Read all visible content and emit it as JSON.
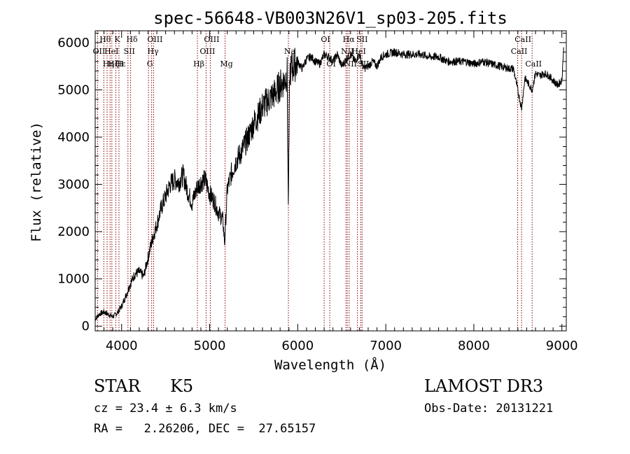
{
  "chart_data": {
    "type": "line",
    "title": "spec-56648-VB003N26V1_sp03-205.fits",
    "xlabel": "Wavelength (Å)",
    "ylabel": "Flux (relative)",
    "xlim": [
      3700,
      9050
    ],
    "ylim": [
      -100,
      6250
    ],
    "xticks": [
      4000,
      5000,
      6000,
      7000,
      8000,
      9000
    ],
    "yticks": [
      0,
      1000,
      2000,
      3000,
      4000,
      5000,
      6000
    ],
    "grid": false,
    "line_color": "#000000",
    "marker_color": "#8b0000",
    "series": [
      {
        "x": [
          3700,
          3750,
          3800,
          3850,
          3900,
          3950,
          4000,
          4050,
          4100,
          4150,
          4200,
          4250,
          4300,
          4350,
          4400,
          4450,
          4500,
          4550,
          4600,
          4650,
          4700,
          4750,
          4800,
          4850,
          4900,
          4950,
          5000,
          5050,
          5100,
          5150,
          5170,
          5200,
          5250,
          5300,
          5350,
          5400,
          5450,
          5500,
          5550,
          5600,
          5650,
          5700,
          5750,
          5800,
          5850,
          5880,
          5893,
          5910,
          5950,
          6000,
          6050,
          6100,
          6150,
          6200,
          6250,
          6300,
          6350,
          6400,
          6450,
          6500,
          6550,
          6600,
          6650,
          6700,
          6750,
          6800,
          6850,
          6900,
          6950,
          7000,
          7100,
          7200,
          7300,
          7400,
          7500,
          7600,
          7700,
          7800,
          7900,
          8000,
          8100,
          8200,
          8300,
          8400,
          8450,
          8498,
          8542,
          8580,
          8662,
          8700,
          8750,
          8800,
          8850,
          8900,
          8950,
          9000,
          9020
        ],
        "y": [
          150,
          260,
          300,
          250,
          200,
          280,
          420,
          650,
          900,
          1100,
          1150,
          1050,
          1450,
          1850,
          2150,
          2500,
          2750,
          3000,
          3100,
          3050,
          3200,
          2850,
          2600,
          2900,
          3050,
          3100,
          2800,
          2650,
          2400,
          2250,
          1750,
          2900,
          3250,
          3500,
          3650,
          3850,
          4050,
          4300,
          4450,
          4650,
          4750,
          4850,
          4950,
          5100,
          5200,
          5350,
          2500,
          5400,
          5500,
          5600,
          5450,
          5650,
          5700,
          5600,
          5550,
          5750,
          5700,
          5600,
          5750,
          5500,
          5650,
          5750,
          5600,
          5750,
          5450,
          5500,
          5600,
          5500,
          5700,
          5750,
          5800,
          5750,
          5750,
          5750,
          5700,
          5700,
          5600,
          5600,
          5600,
          5550,
          5600,
          5550,
          5500,
          5450,
          5450,
          5000,
          4600,
          5250,
          5000,
          5350,
          5300,
          5350,
          5300,
          5200,
          5100,
          5200,
          5900
        ]
      }
    ],
    "lines": [
      {
        "x": 3727,
        "labels": [
          "OII"
        ],
        "rows": [
          1
        ]
      },
      {
        "x": 3798,
        "labels": [
          "Hθ"
        ],
        "rows": [
          0
        ]
      },
      {
        "x": 3835,
        "labels": [
          "Hη"
        ],
        "rows": [
          2
        ]
      },
      {
        "x": 3869,
        "labels": [
          "HeI"
        ],
        "rows": [
          1
        ]
      },
      {
        "x": 3889,
        "labels": [
          "Hζ"
        ],
        "rows": [
          2
        ]
      },
      {
        "x": 3934,
        "labels": [
          "K"
        ],
        "rows": [
          0
        ]
      },
      {
        "x": 3970,
        "labels": [
          "H",
          "Hε"
        ],
        "rows": [
          2,
          2
        ]
      },
      {
        "x": 4072,
        "labels": [
          "SII"
        ],
        "rows": [
          1
        ]
      },
      {
        "x": 4102,
        "labels": [
          "Hδ"
        ],
        "rows": [
          0
        ]
      },
      {
        "x": 4305,
        "labels": [
          "G"
        ],
        "rows": [
          2
        ]
      },
      {
        "x": 4341,
        "labels": [
          "Hγ"
        ],
        "rows": [
          1
        ]
      },
      {
        "x": 4363,
        "labels": [
          "OIII"
        ],
        "rows": [
          0
        ]
      },
      {
        "x": 4861,
        "labels": [
          "Hβ"
        ],
        "rows": [
          2
        ]
      },
      {
        "x": 4959,
        "labels": [
          "OIII"
        ],
        "rows": [
          1
        ]
      },
      {
        "x": 5007,
        "labels": [
          "OIII"
        ],
        "rows": [
          0
        ]
      },
      {
        "x": 5175,
        "labels": [
          "Mg"
        ],
        "rows": [
          2
        ]
      },
      {
        "x": 5894,
        "labels": [
          "Na"
        ],
        "rows": [
          1
        ]
      },
      {
        "x": 6300,
        "labels": [
          "OI"
        ],
        "rows": [
          0
        ]
      },
      {
        "x": 6364,
        "labels": [
          "OI"
        ],
        "rows": [
          2
        ]
      },
      {
        "x": 6548,
        "labels": [
          "NII"
        ],
        "rows": [
          1
        ]
      },
      {
        "x": 6563,
        "labels": [
          "Hα"
        ],
        "rows": [
          0
        ]
      },
      {
        "x": 6584,
        "labels": [
          "NII"
        ],
        "rows": [
          2
        ]
      },
      {
        "x": 6678,
        "labels": [
          "HeI"
        ],
        "rows": [
          1
        ]
      },
      {
        "x": 6716,
        "labels": [
          "SII"
        ],
        "rows": [
          0
        ]
      },
      {
        "x": 6731,
        "labels": [
          "SII"
        ],
        "rows": [
          2
        ]
      },
      {
        "x": 8498,
        "labels": [
          "CaII"
        ],
        "rows": [
          1
        ]
      },
      {
        "x": 8542,
        "labels": [
          "CaII"
        ],
        "rows": [
          0
        ]
      },
      {
        "x": 8662,
        "labels": [
          "CaII"
        ],
        "rows": [
          2
        ]
      }
    ]
  },
  "info": {
    "class": "STAR",
    "subclass": "K5",
    "survey": "LAMOST DR3",
    "cz": "cz = 23.4 ± 6.3 km/s",
    "obs_date": "Obs-Date: 20131221",
    "coords": "RA =   2.26206, DEC =  27.65157"
  }
}
